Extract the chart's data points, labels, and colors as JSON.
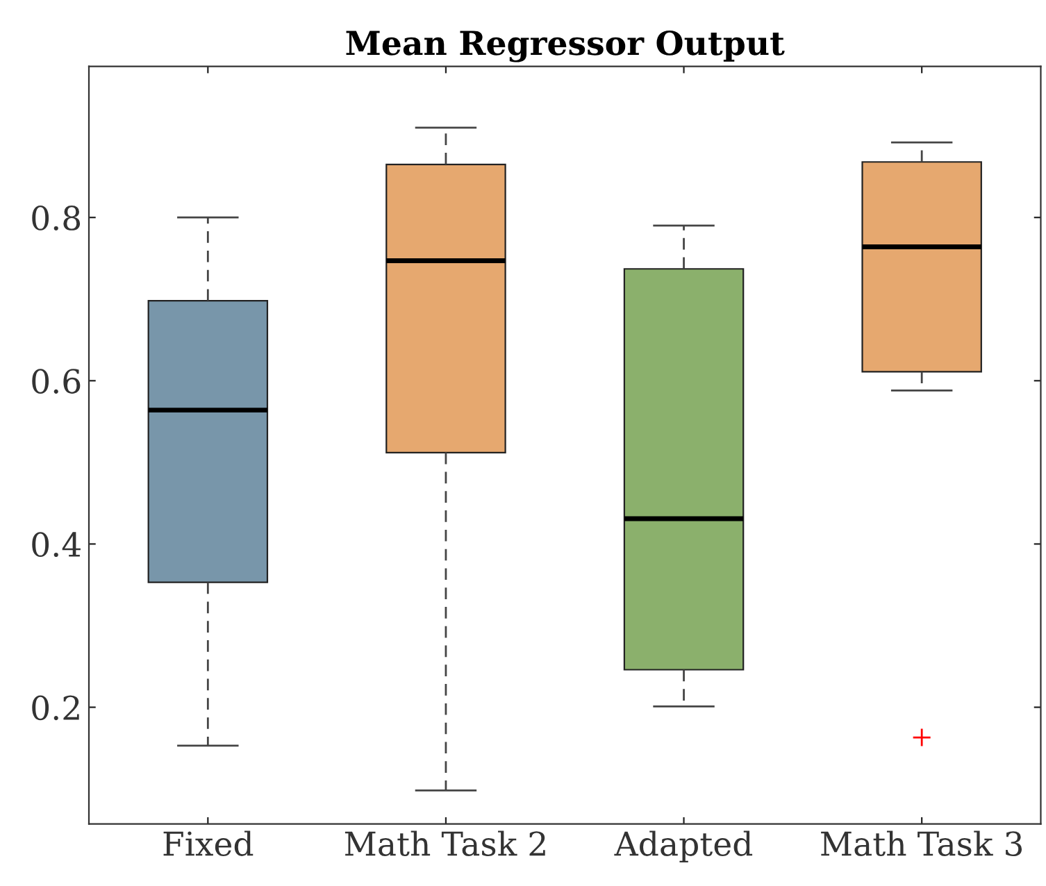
{
  "chart_data": {
    "type": "box",
    "title": "Mean Regressor Output",
    "categories": [
      "Fixed",
      "Math Task 2",
      "Adapted",
      "Math Task 3"
    ],
    "boxes": [
      {
        "low": 0.153,
        "q1": 0.353,
        "median": 0.564,
        "q3": 0.698,
        "high": 0.8
      },
      {
        "low": 0.098,
        "q1": 0.512,
        "median": 0.747,
        "q3": 0.865,
        "high": 0.91
      },
      {
        "low": 0.201,
        "q1": 0.246,
        "median": 0.431,
        "q3": 0.737,
        "high": 0.79
      },
      {
        "low": 0.588,
        "q1": 0.611,
        "median": 0.764,
        "q3": 0.868,
        "high": 0.892,
        "outliers": [
          0.163
        ]
      }
    ],
    "colors": [
      "#7896aa",
      "#e6a86f",
      "#8bb06c",
      "#e6a86f"
    ],
    "ylim": [
      0.057,
      0.985
    ],
    "yticks": [
      0.2,
      0.4,
      0.6,
      0.8
    ],
    "grid": false
  }
}
